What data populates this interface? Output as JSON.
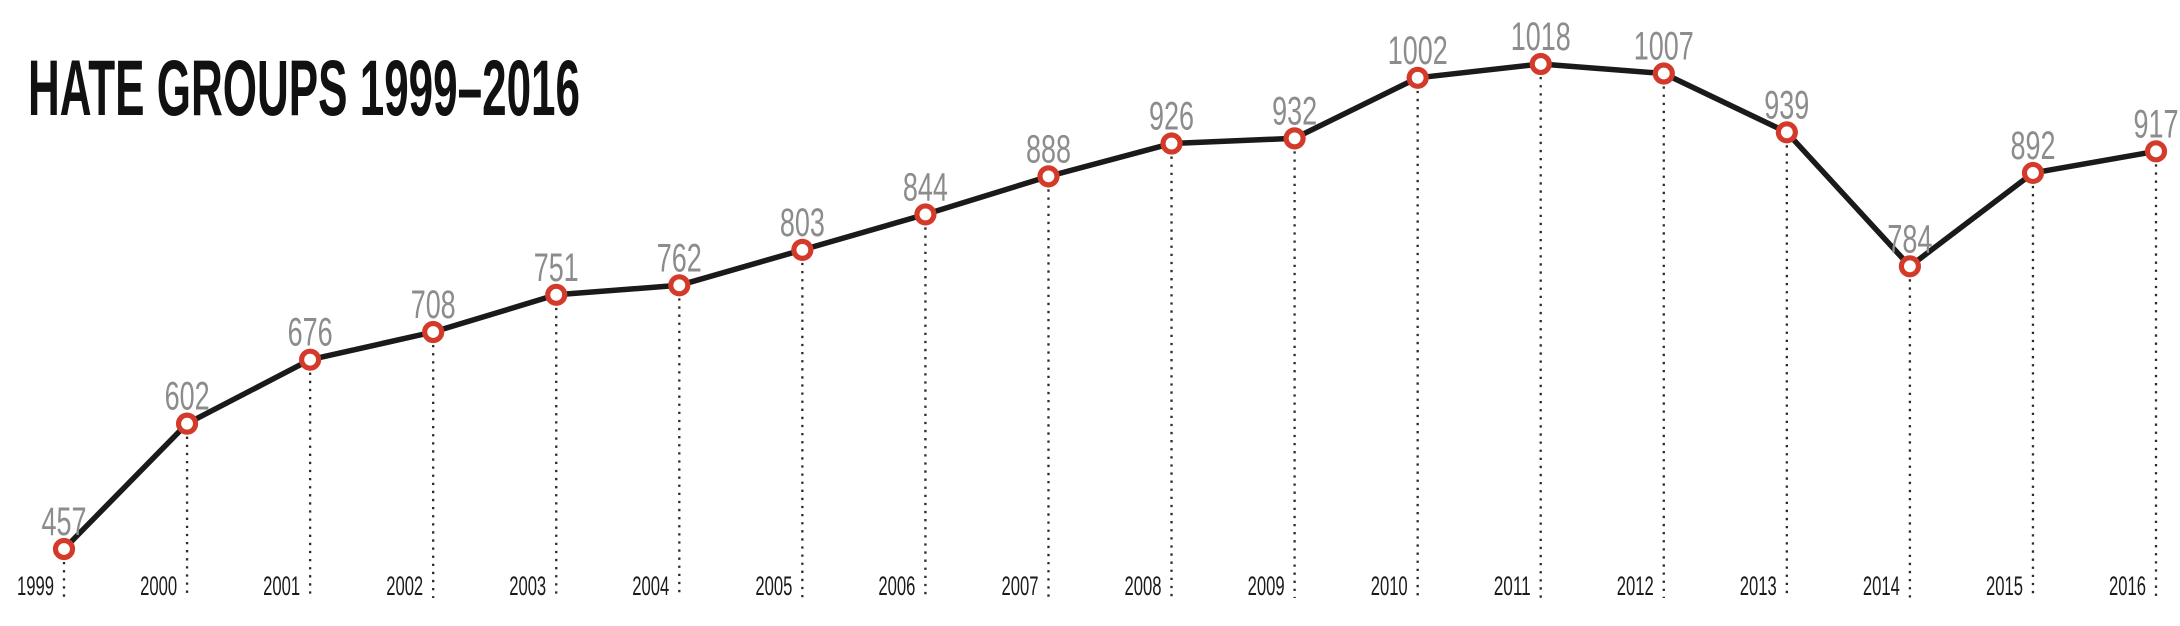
{
  "chart_data": {
    "type": "line",
    "title": "HATE GROUPS 1999–2016",
    "categories": [
      "1999",
      "2000",
      "2001",
      "2002",
      "2003",
      "2004",
      "2005",
      "2006",
      "2007",
      "2008",
      "2009",
      "2010",
      "2011",
      "2012",
      "2013",
      "2014",
      "2015",
      "2016"
    ],
    "values": [
      457,
      602,
      676,
      708,
      751,
      762,
      803,
      844,
      888,
      926,
      932,
      1002,
      1018,
      1007,
      939,
      784,
      892,
      917
    ],
    "xlabel": "",
    "ylabel": "",
    "ylim": [
      440,
      1040
    ],
    "grid": false,
    "y_axis_visible": false,
    "legend": "none",
    "marker": "open-circle",
    "point_guides": "dotted-vertical",
    "value_labels_position": "above-point",
    "year_labels_position": "left-of-guide-at-bottom",
    "colors": {
      "background": "#ffffff",
      "line": "#1a1a1a",
      "marker_stroke": "#d43a2a",
      "marker_fill": "#ffffff",
      "value_label": "#8c8c8c",
      "year_label": "#1a1a1a",
      "guide_line": "#2a2a2a",
      "title": "#111111"
    }
  }
}
